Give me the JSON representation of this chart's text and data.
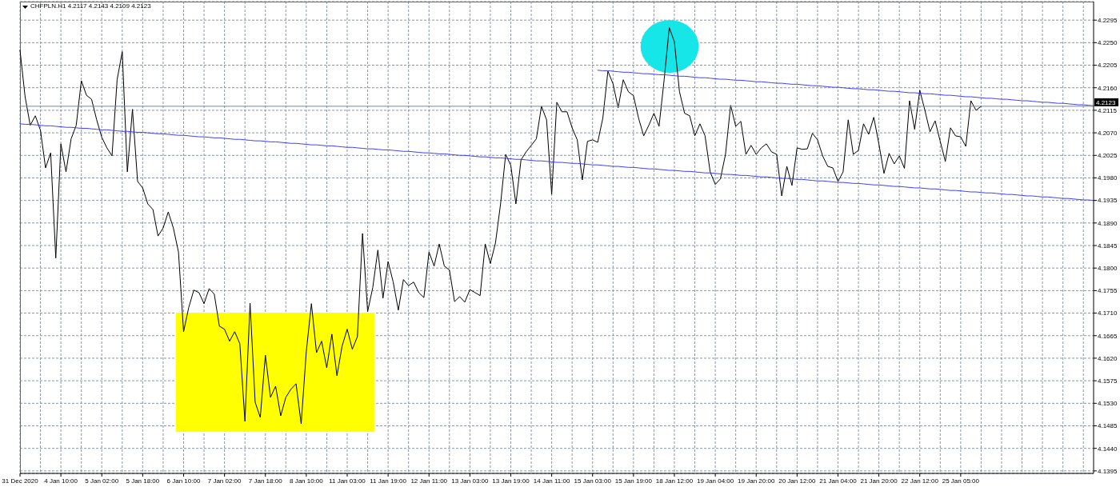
{
  "chart_data": {
    "type": "line",
    "title": "CHFPLN.H1 4.2117 4.2143 4.2109 4.2123",
    "categories": [
      "31 Dec 2020",
      null,
      null,
      null,
      null,
      null,
      null,
      null,
      "4 Jan 10:00",
      null,
      null,
      null,
      null,
      null,
      null,
      null,
      "5 Jan 02:00",
      null,
      null,
      null,
      null,
      null,
      null,
      null,
      "5 Jan 18:00",
      null,
      null,
      null,
      null,
      null,
      null,
      null,
      "6 Jan 10:00",
      null,
      null,
      null,
      null,
      null,
      null,
      null,
      "7 Jan 02:00",
      null,
      null,
      null,
      null,
      null,
      null,
      null,
      "7 Jan 18:00",
      null,
      null,
      null,
      null,
      null,
      null,
      null,
      "8 Jan 10:00",
      null,
      null,
      null,
      null,
      null,
      null,
      null,
      "11 Jan 03:00",
      null,
      null,
      null,
      null,
      null,
      null,
      null,
      "11 Jan 19:00",
      null,
      null,
      null,
      null,
      null,
      null,
      null,
      "12 Jan 11:00",
      null,
      null,
      null,
      null,
      null,
      null,
      null,
      "13 Jan 03:00",
      null,
      null,
      null,
      null,
      null,
      null,
      null,
      "13 Jan 19:00",
      null,
      null,
      null,
      null,
      null,
      null,
      null,
      "14 Jan 11:00",
      null,
      null,
      null,
      null,
      null,
      null,
      null,
      "15 Jan 03:00",
      null,
      null,
      null,
      null,
      null,
      null,
      null,
      "15 Jan 19:00",
      null,
      null,
      null,
      null,
      null,
      null,
      null,
      "18 Jan 12:00",
      null,
      null,
      null,
      null,
      null,
      null,
      null,
      "19 Jan 04:00",
      null,
      null,
      null,
      null,
      null,
      null,
      null,
      "19 Jan 20:00",
      null,
      null,
      null,
      null,
      null,
      null,
      null,
      "20 Jan 12:00",
      null,
      null,
      null,
      null,
      null,
      null,
      null,
      "21 Jan 04:00",
      null,
      null,
      null,
      null,
      null,
      null,
      null,
      "21 Jan 20:00",
      null,
      null,
      null,
      null,
      null,
      null,
      null,
      "22 Jan 12:00",
      null,
      null,
      null,
      null,
      null,
      null,
      null,
      "25 Jan 05:00",
      null,
      null,
      null,
      null,
      null,
      null,
      null,
      null,
      null,
      null,
      null,
      null,
      null,
      null,
      null,
      null,
      null,
      null,
      null,
      null,
      null,
      null,
      null,
      null,
      null,
      null
    ],
    "series": [
      {
        "color": "#000000",
        "values": [
          4.2235,
          4.2142,
          4.2085,
          4.2104,
          4.2075,
          4.2,
          4.203,
          4.182,
          4.2048,
          4.1992,
          4.2058,
          4.2085,
          4.2174,
          4.2145,
          4.2137,
          4.2096,
          4.2061,
          4.204,
          4.2024,
          4.2176,
          4.2232,
          4.1992,
          4.2117,
          4.1973,
          4.196,
          4.1928,
          4.1917,
          4.1864,
          4.188,
          4.1912,
          4.188,
          4.1832,
          4.1673,
          4.1721,
          4.1756,
          4.1751,
          4.1729,
          4.1759,
          4.1748,
          4.1684,
          4.1678,
          4.1654,
          4.1673,
          4.1649,
          4.1494,
          4.173,
          4.1532,
          4.1502,
          4.1626,
          4.1542,
          4.1564,
          4.1505,
          4.1542,
          4.1558,
          4.1569,
          4.1489,
          4.1633,
          4.1729,
          4.1631,
          4.1654,
          4.1601,
          4.1668,
          4.1585,
          4.1644,
          4.1678,
          4.1638,
          4.1663,
          4.1869,
          4.1713,
          4.1761,
          4.1836,
          4.174,
          4.1813,
          4.1772,
          4.1716,
          4.1777,
          4.1765,
          4.1772,
          4.1751,
          4.1741,
          4.1832,
          4.1804,
          4.1848,
          4.1804,
          4.1796,
          4.1733,
          4.1743,
          4.1732,
          4.1757,
          4.1751,
          4.1745,
          4.1848,
          4.1809,
          4.185,
          4.1928,
          4.2027,
          4.2005,
          4.1928,
          4.2016,
          4.2032,
          4.2045,
          4.2058,
          4.2123,
          4.2096,
          4.1947,
          4.2131,
          4.2112,
          4.2112,
          4.208,
          4.2056,
          4.1976,
          4.2053,
          4.2056,
          4.2051,
          4.2099,
          4.2193,
          4.2168,
          4.212,
          4.2176,
          4.2152,
          4.2144,
          4.2099,
          4.2064,
          4.2085,
          4.2109,
          4.2083,
          4.2176,
          4.228,
          4.2252,
          4.2152,
          4.2109,
          4.2104,
          4.2064,
          4.2088,
          4.2064,
          4.1992,
          4.1967,
          4.1978,
          4.2027,
          4.2125,
          4.2083,
          4.2093,
          4.2027,
          4.2045,
          4.2027,
          4.204,
          4.2048,
          4.2032,
          4.2027,
          4.1944,
          4.2003,
          4.1965,
          4.204,
          4.2037,
          4.2038,
          4.2069,
          4.2056,
          4.2024,
          4.2003,
          4.2,
          4.1973,
          4.1992,
          4.2096,
          4.2027,
          4.2035,
          4.2088,
          4.2067,
          4.2101,
          4.2048,
          4.1989,
          4.2029,
          4.2008,
          4.2024,
          4.1999,
          4.2134,
          4.2077,
          4.2155,
          4.2115,
          4.2072,
          4.2094,
          4.2053,
          4.2013,
          4.208,
          4.2064,
          4.2062,
          4.2043,
          4.2134,
          4.2115,
          4.2123,
          null,
          null,
          null,
          null,
          null,
          null,
          null,
          null,
          null,
          null,
          null,
          null,
          null,
          null,
          null,
          null,
          null,
          null,
          null,
          null,
          null,
          null
        ]
      },
      {
        "type": "line",
        "color": "#3f3fff",
        "values": [
          4.2088,
          4.2087,
          4.2087,
          4.2086,
          4.2085,
          4.2084,
          4.2084,
          4.2083,
          4.2082,
          4.2081,
          4.2081,
          4.208,
          4.2079,
          4.2079,
          4.2078,
          4.2077,
          4.2076,
          4.2076,
          4.2075,
          4.2074,
          4.2073,
          4.2073,
          4.2072,
          4.2071,
          4.2071,
          4.207,
          4.2069,
          4.2068,
          4.2068,
          4.2067,
          4.2066,
          4.2065,
          4.2065,
          4.2064,
          4.2063,
          4.2062,
          4.2062,
          4.2061,
          4.206,
          4.206,
          4.2059,
          4.2058,
          4.2057,
          4.2057,
          4.2056,
          4.2055,
          4.2054,
          4.2054,
          4.2053,
          4.2052,
          4.2052,
          4.2051,
          4.205,
          4.2049,
          4.2049,
          4.2048,
          4.2047,
          4.2046,
          4.2046,
          4.2045,
          4.2044,
          4.2044,
          4.2043,
          4.2042,
          4.2041,
          4.2041,
          4.204,
          4.2039,
          4.2038,
          4.2038,
          4.2037,
          4.2036,
          4.2036,
          4.2035,
          4.2034,
          4.2033,
          4.2033,
          4.2032,
          4.2031,
          4.203,
          4.203,
          4.2029,
          4.2028,
          4.2028,
          4.2027,
          4.2026,
          4.2025,
          4.2025,
          4.2024,
          4.2023,
          4.2022,
          4.2022,
          4.2021,
          4.202,
          4.202,
          4.2019,
          4.2018,
          4.2017,
          4.2017,
          4.2016,
          4.2015,
          4.2014,
          4.2014,
          4.2013,
          4.2012,
          4.2011,
          4.2011,
          4.201,
          4.2009,
          4.2009,
          4.2008,
          4.2007,
          4.2006,
          4.2006,
          4.2005,
          4.2004,
          4.2003,
          4.2003,
          4.2002,
          4.2001,
          4.2001,
          4.2,
          4.1999,
          4.1998,
          4.1998,
          4.1997,
          4.1996,
          4.1995,
          4.1995,
          4.1994,
          4.1993,
          4.1993,
          4.1992,
          4.1991,
          4.199,
          4.199,
          4.1989,
          4.1988,
          4.1987,
          4.1987,
          4.1986,
          4.1985,
          4.1985,
          4.1984,
          4.1983,
          4.1982,
          4.1982,
          4.1981,
          4.198,
          4.1979,
          4.1979,
          4.1978,
          4.1977,
          4.1977,
          4.1976,
          4.1975,
          4.1974,
          4.1974,
          4.1973,
          4.1972,
          4.1971,
          4.1971,
          4.197,
          4.1969,
          4.1969,
          4.1968,
          4.1967,
          4.1966,
          4.1966,
          4.1965,
          4.1964,
          4.1963,
          4.1963,
          4.1962,
          4.1961,
          4.196,
          4.196,
          4.1959,
          4.1958,
          4.1958,
          4.1957,
          4.1956,
          4.1955,
          4.1955,
          4.1954,
          4.1953,
          4.1952,
          4.1952,
          4.1951,
          4.195,
          4.195,
          4.1949,
          4.1948,
          4.1947,
          4.1947,
          4.1946,
          4.1945,
          4.1944,
          4.1944,
          4.1943,
          4.1942,
          4.1942,
          4.1941,
          4.194,
          4.1939,
          4.1939,
          4.1938,
          4.1937,
          4.1936,
          4.1936,
          4.1935
        ]
      },
      {
        "type": "line",
        "color": "#3f3fff",
        "values": [
          null,
          null,
          null,
          null,
          null,
          null,
          null,
          null,
          null,
          null,
          null,
          null,
          null,
          null,
          null,
          null,
          null,
          null,
          null,
          null,
          null,
          null,
          null,
          null,
          null,
          null,
          null,
          null,
          null,
          null,
          null,
          null,
          null,
          null,
          null,
          null,
          null,
          null,
          null,
          null,
          null,
          null,
          null,
          null,
          null,
          null,
          null,
          null,
          null,
          null,
          null,
          null,
          null,
          null,
          null,
          null,
          null,
          null,
          null,
          null,
          null,
          null,
          null,
          null,
          null,
          null,
          null,
          null,
          null,
          null,
          null,
          null,
          null,
          null,
          null,
          null,
          null,
          null,
          null,
          null,
          null,
          null,
          null,
          null,
          null,
          null,
          null,
          null,
          null,
          null,
          null,
          null,
          null,
          null,
          null,
          null,
          null,
          null,
          null,
          null,
          null,
          null,
          null,
          null,
          null,
          null,
          null,
          null,
          null,
          null,
          null,
          null,
          null,
          4.2195,
          4.2194,
          4.2194,
          4.2193,
          4.2192,
          4.2191,
          4.2191,
          4.219,
          4.2189,
          4.2188,
          4.2188,
          4.2187,
          4.2186,
          4.2186,
          4.2185,
          4.2184,
          4.2183,
          4.2183,
          4.2182,
          4.2181,
          4.218,
          4.218,
          4.2179,
          4.2178,
          4.2177,
          4.2177,
          4.2176,
          4.2175,
          4.2175,
          4.2174,
          4.2173,
          4.2172,
          4.2172,
          4.2171,
          4.217,
          4.2169,
          4.2169,
          4.2168,
          4.2167,
          4.2167,
          4.2166,
          4.2165,
          4.2164,
          4.2164,
          4.2163,
          4.2162,
          4.2161,
          4.2161,
          4.216,
          4.2159,
          4.2158,
          4.2158,
          4.2157,
          4.2156,
          4.2156,
          4.2155,
          4.2154,
          4.2153,
          4.2153,
          4.2152,
          4.2151,
          4.215,
          4.215,
          4.2149,
          4.2148,
          4.2148,
          4.2147,
          4.2146,
          4.2145,
          4.2145,
          4.2144,
          4.2143,
          4.2142,
          4.2142,
          4.2141,
          4.214,
          4.2139,
          4.2139,
          4.2138,
          4.2137,
          4.2137,
          4.2136,
          4.2135,
          4.2134,
          4.2134,
          4.2133,
          4.2132,
          4.2131,
          4.2131,
          4.213,
          4.2129,
          4.2129,
          4.2128,
          4.2127,
          4.2126,
          4.2126,
          4.2125,
          4.2124
        ]
      }
    ],
    "ylim": [
      4.139,
      4.2332
    ],
    "yticks": [
      4.1395,
      {
        "value": 4.144,
        "label": "4.1440"
      },
      4.1485,
      {
        "value": 4.153,
        "label": "4.1530"
      },
      4.1575,
      {
        "value": 4.162,
        "label": "4.1620"
      },
      4.1665,
      {
        "value": 4.171,
        "label": "4.1710"
      },
      4.1755,
      {
        "value": 4.18,
        "label": "4.1800"
      },
      4.1845,
      {
        "value": 4.189,
        "label": "4.1890"
      },
      4.1935,
      {
        "value": 4.198,
        "label": "4.1980"
      },
      4.2025,
      {
        "value": 4.207,
        "label": "4.2070"
      },
      4.2115,
      {
        "value": 4.216,
        "label": "4.2160"
      },
      4.2205,
      {
        "value": 4.225,
        "label": "4.2250"
      },
      4.2295
    ],
    "grid": true,
    "ref_lines": [
      {
        "axis": "y",
        "value": 4.2123,
        "label": "4.2123",
        "color": "#778899"
      }
    ]
  }
}
